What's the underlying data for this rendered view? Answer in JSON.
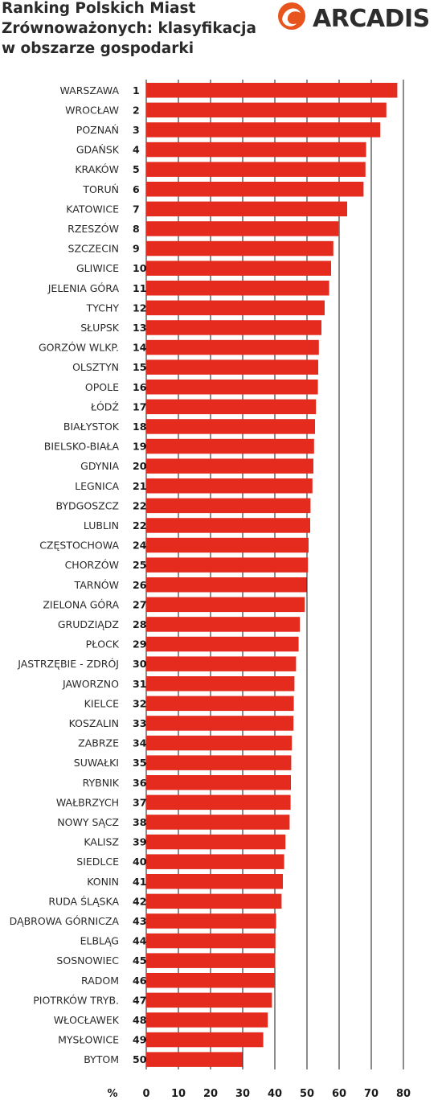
{
  "header": {
    "title_line1": "Ranking Polskich Miast",
    "title_line2": "Zrównoważonych: klasyfikacja",
    "title_line3": "w obszarze gospodarki",
    "brand": "ARCADIS",
    "brand_color": "#e8541e"
  },
  "chart_data": {
    "type": "bar",
    "orientation": "horizontal",
    "title": "Ranking Polskich Miast Zrównoważonych: klasyfikacja w obszarze gospodarki",
    "xlabel": "%",
    "xlim": [
      0,
      80
    ],
    "xticks": [
      0,
      10,
      20,
      30,
      40,
      50,
      60,
      70,
      80
    ],
    "grid": true,
    "bar_color": "#e52b1e",
    "categories": [
      "WARSZAWA",
      "WROCŁAW",
      "POZNAŃ",
      "GDAŃSK",
      "KRAKÓW",
      "TORUŃ",
      "KATOWICE",
      "RZESZÓW",
      "SZCZECIN",
      "GLIWICE",
      "JELENIA GÓRA",
      "TYCHY",
      "SŁUPSK",
      "GORZÓW WLKP.",
      "OLSZTYN",
      "OPOLE",
      "ŁÓDŹ",
      "BIAŁYSTOK",
      "BIELSKO-BIAŁA",
      "GDYNIA",
      "LEGNICA",
      "BYDGOSZCZ",
      "LUBLIN",
      "CZĘSTOCHOWA",
      "CHORZÓW",
      "TARNÓW",
      "ZIELONA GÓRA",
      "GRUDZIĄDZ",
      "PŁOCK",
      "JASTRZĘBIE - ZDRÓJ",
      "JAWORZNO",
      "KIELCE",
      "KOSZALIN",
      "ZABRZE",
      "SUWAŁKI",
      "RYBNIK",
      "WAŁBRZYCH",
      "NOWY SĄCZ",
      "KALISZ",
      "SIEDLCE",
      "KONIN",
      "RUDA ŚLĄSKA",
      "DĄBROWA GÓRNICZA",
      "ELBLĄG",
      "SOSNOWIEC",
      "RADOM",
      "PIOTRKÓW TRYB.",
      "WŁOCŁAWEK",
      "MYSŁOWICE",
      "BYTOM"
    ],
    "ranks": [
      "1",
      "2",
      "3",
      "4",
      "5",
      "6",
      "7",
      "8",
      "9",
      "10",
      "11",
      "12",
      "13",
      "14",
      "15",
      "16",
      "17",
      "18",
      "19",
      "20",
      "21",
      "22",
      "22",
      "24",
      "25",
      "26",
      "27",
      "28",
      "29",
      "30",
      "31",
      "32",
      "33",
      "34",
      "35",
      "36",
      "37",
      "38",
      "39",
      "40",
      "41",
      "42",
      "43",
      "44",
      "45",
      "46",
      "47",
      "48",
      "49",
      "50"
    ],
    "values": [
      78.1,
      74.7,
      72.8,
      68.4,
      68.2,
      67.6,
      62.5,
      59.8,
      58.2,
      57.5,
      56.9,
      55.5,
      54.5,
      53.7,
      53.5,
      53.4,
      52.8,
      52.5,
      52.2,
      52.0,
      51.7,
      51.1,
      51.0,
      50.5,
      50.3,
      49.9,
      49.3,
      47.8,
      47.4,
      46.6,
      46.1,
      45.9,
      45.8,
      45.3,
      45.1,
      45.0,
      44.9,
      44.6,
      43.3,
      42.9,
      42.5,
      42.1,
      40.4,
      40.2,
      40.1,
      40.0,
      39.1,
      37.8,
      36.4,
      29.9
    ]
  }
}
